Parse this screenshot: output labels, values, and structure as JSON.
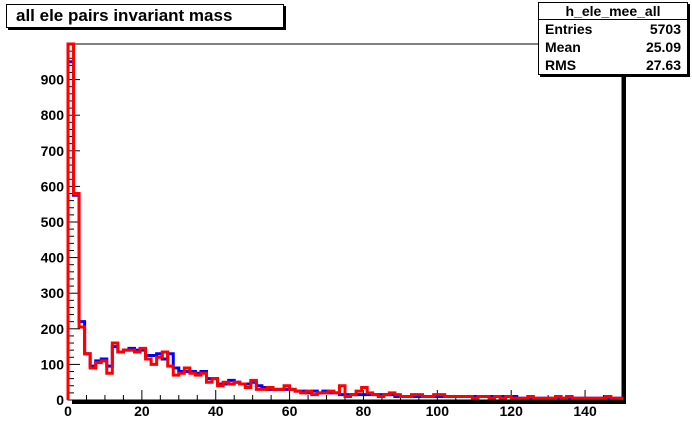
{
  "title": "all ele pairs invariant mass",
  "stats": {
    "name": "h_ele_mee_all",
    "rows": [
      {
        "label": "Entries",
        "value": "5703"
      },
      {
        "label": "Mean",
        "value": "25.09"
      },
      {
        "label": "RMS",
        "value": "27.63"
      }
    ]
  },
  "chart_data": {
    "type": "line",
    "title": "all ele pairs invariant mass",
    "xlabel": "",
    "ylabel": "",
    "xlim": [
      0,
      150
    ],
    "ylim": [
      0,
      1000
    ],
    "x_ticks": [
      0,
      20,
      40,
      60,
      80,
      100,
      120,
      140
    ],
    "y_ticks": [
      0,
      100,
      200,
      300,
      400,
      500,
      600,
      700,
      800,
      900
    ],
    "step_histogram": true,
    "bin_width": 1.5,
    "grid": false,
    "series": [
      {
        "color": "#0000ff",
        "values": [
          950,
          575,
          220,
          130,
          95,
          110,
          115,
          95,
          150,
          135,
          140,
          145,
          140,
          140,
          125,
          125,
          130,
          115,
          130,
          90,
          80,
          80,
          80,
          75,
          80,
          60,
          60,
          45,
          45,
          55,
          50,
          45,
          45,
          50,
          40,
          35,
          30,
          30,
          30,
          30,
          30,
          25,
          25,
          20,
          25,
          20,
          25,
          20,
          20,
          15,
          15,
          15,
          15,
          15,
          15,
          15,
          15,
          15,
          15,
          10,
          10,
          10,
          10,
          10,
          10,
          10,
          10,
          10,
          10,
          10,
          10,
          10,
          10,
          10,
          10,
          10,
          10,
          10,
          10,
          10,
          10,
          5,
          5,
          5,
          5,
          5,
          5,
          5,
          5,
          5,
          5,
          5,
          5,
          5,
          5,
          5,
          5,
          5,
          5,
          5
        ]
      },
      {
        "color": "#ff0000",
        "values": [
          1000,
          580,
          205,
          130,
          90,
          105,
          110,
          75,
          160,
          135,
          140,
          140,
          135,
          145,
          115,
          100,
          120,
          135,
          95,
          70,
          75,
          90,
          75,
          70,
          75,
          50,
          60,
          40,
          50,
          45,
          50,
          45,
          35,
          55,
          30,
          30,
          35,
          30,
          30,
          40,
          30,
          25,
          20,
          25,
          15,
          20,
          20,
          25,
          20,
          40,
          10,
          15,
          25,
          35,
          20,
          15,
          10,
          15,
          20,
          15,
          10,
          10,
          15,
          15,
          10,
          10,
          15,
          15,
          10,
          10,
          10,
          10,
          10,
          5,
          10,
          10,
          5,
          10,
          5,
          10,
          5,
          5,
          5,
          10,
          5,
          5,
          5,
          5,
          10,
          5,
          10,
          5,
          5,
          5,
          5,
          5,
          5,
          10,
          5,
          5
        ]
      }
    ]
  }
}
